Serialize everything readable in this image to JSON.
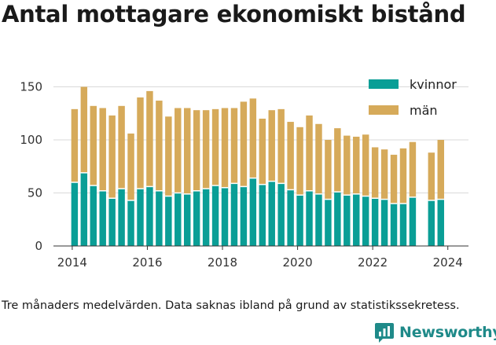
{
  "chart_data": {
    "type": "bar",
    "stacked": true,
    "title": "Antal mottagare ekonomiskt bistånd",
    "x_start": 2014.0,
    "x_range": [
      2013.5,
      2024.55
    ],
    "x_ticks": [
      2014,
      2016,
      2018,
      2020,
      2022,
      2024
    ],
    "ylim": [
      0,
      160
    ],
    "y_ticks": [
      0,
      50,
      100,
      150
    ],
    "grid": "horizontal",
    "legend": "top-right",
    "series": [
      {
        "name": "kvinnor",
        "color": "#0a9e96",
        "values": [
          60,
          69,
          57,
          52,
          45,
          54,
          43,
          54,
          56,
          52,
          47,
          50,
          49,
          52,
          54,
          57,
          55,
          59,
          56,
          64,
          58,
          61,
          59,
          53,
          48,
          52,
          49,
          44,
          51,
          48,
          49,
          47,
          45,
          44,
          40,
          40,
          46,
          null,
          43,
          44
        ]
      },
      {
        "name": "män",
        "color": "#d6aa5a",
        "values": [
          69,
          81,
          75,
          78,
          78,
          78,
          63,
          86,
          90,
          85,
          75,
          80,
          81,
          76,
          74,
          72,
          75,
          71,
          80,
          75,
          62,
          67,
          70,
          64,
          64,
          71,
          66,
          56,
          60,
          56,
          54,
          58,
          48,
          47,
          46,
          52,
          52,
          null,
          45,
          56
        ]
      }
    ]
  },
  "footnote": "Tre månaders medelvärden. Data saknas ibland på grund av statistikssekretess.",
  "brand": {
    "name": "Newsworthy",
    "color": "#1f8a89",
    "icon": "newsworthy-logo-icon"
  }
}
